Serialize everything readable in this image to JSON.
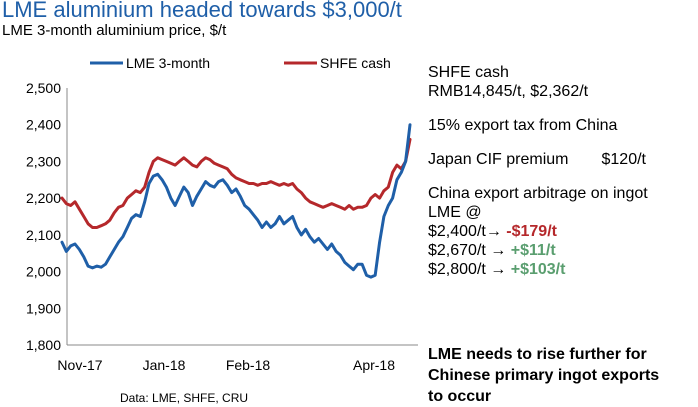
{
  "header": {
    "title": "LME aluminium headed towards $3,000/t",
    "subtitle": "LME 3-month aluminium price, $/t"
  },
  "colors": {
    "lme": "#1f5fa8",
    "shfe": "#b5282b",
    "negative": "#b5282b",
    "positive": "#5a9e6f",
    "title": "#1f5fa8"
  },
  "chart_data": {
    "type": "line",
    "title": "LME aluminium headed towards $3,000/t",
    "subtitle": "LME 3-month aluminium price, $/t",
    "xlabel": "",
    "ylabel": "",
    "ylim": [
      1800,
      2500
    ],
    "yticks": [
      "1,800",
      "1,900",
      "2,000",
      "2,100",
      "2,200",
      "2,300",
      "2,400",
      "2,500"
    ],
    "yticks_values": [
      1800,
      1900,
      2000,
      2100,
      2200,
      2300,
      2400,
      2500
    ],
    "xticks": [
      "Nov-17",
      "Jan-18",
      "Feb-18",
      "Apr-18"
    ],
    "grid": false,
    "legend_position": "top",
    "source": "Data: LME, SHFE, CRU",
    "series": [
      {
        "name": "LME 3-month",
        "color": "#1f5fa8",
        "values": [
          2080,
          2055,
          2070,
          2075,
          2060,
          2040,
          2015,
          2010,
          2015,
          2012,
          2020,
          2040,
          2060,
          2080,
          2095,
          2120,
          2145,
          2155,
          2150,
          2190,
          2240,
          2260,
          2265,
          2250,
          2230,
          2200,
          2180,
          2205,
          2230,
          2215,
          2180,
          2205,
          2225,
          2245,
          2235,
          2230,
          2245,
          2250,
          2235,
          2215,
          2225,
          2205,
          2180,
          2170,
          2155,
          2140,
          2120,
          2135,
          2120,
          2130,
          2150,
          2130,
          2140,
          2150,
          2120,
          2100,
          2115,
          2095,
          2080,
          2090,
          2075,
          2060,
          2075,
          2055,
          2045,
          2025,
          2015,
          2005,
          2020,
          2020,
          1990,
          1985,
          1990,
          2080,
          2150,
          2180,
          2200,
          2250,
          2270,
          2300,
          2400
        ]
      },
      {
        "name": "SHFE cash",
        "color": "#b5282b",
        "values": [
          2200,
          2185,
          2180,
          2190,
          2170,
          2150,
          2130,
          2120,
          2120,
          2125,
          2130,
          2140,
          2160,
          2175,
          2180,
          2200,
          2210,
          2220,
          2215,
          2230,
          2270,
          2300,
          2310,
          2305,
          2300,
          2295,
          2290,
          2300,
          2310,
          2300,
          2290,
          2285,
          2300,
          2310,
          2305,
          2295,
          2290,
          2285,
          2280,
          2265,
          2255,
          2250,
          2245,
          2240,
          2240,
          2235,
          2240,
          2240,
          2245,
          2240,
          2235,
          2240,
          2235,
          2240,
          2225,
          2215,
          2200,
          2190,
          2185,
          2180,
          2175,
          2180,
          2185,
          2180,
          2175,
          2170,
          2180,
          2170,
          2175,
          2175,
          2180,
          2200,
          2210,
          2200,
          2220,
          2230,
          2270,
          2290,
          2280,
          2300,
          2360
        ]
      }
    ]
  },
  "notes": {
    "shfe_cash_label": "SHFE cash",
    "shfe_cash_value": "RMB14,845/t, $2,362/t",
    "export_tax": "15% export tax from China",
    "cif_label": "Japan CIF premium",
    "cif_value": "$120/t",
    "arb_title": "China export arbitrage on ingot",
    "arb_lme": "LME @",
    "arb_rows": [
      {
        "price": "$2,400/t→ ",
        "value": "-$179/t"
      },
      {
        "price": "$2,670/t → ",
        "value": "+$11/t"
      },
      {
        "price": "$2,800/t → ",
        "value": "+$103/t"
      }
    ]
  },
  "conclusion": {
    "line1": "LME needs to rise further for",
    "line2": "Chinese primary ingot exports",
    "line3": "to occur"
  }
}
